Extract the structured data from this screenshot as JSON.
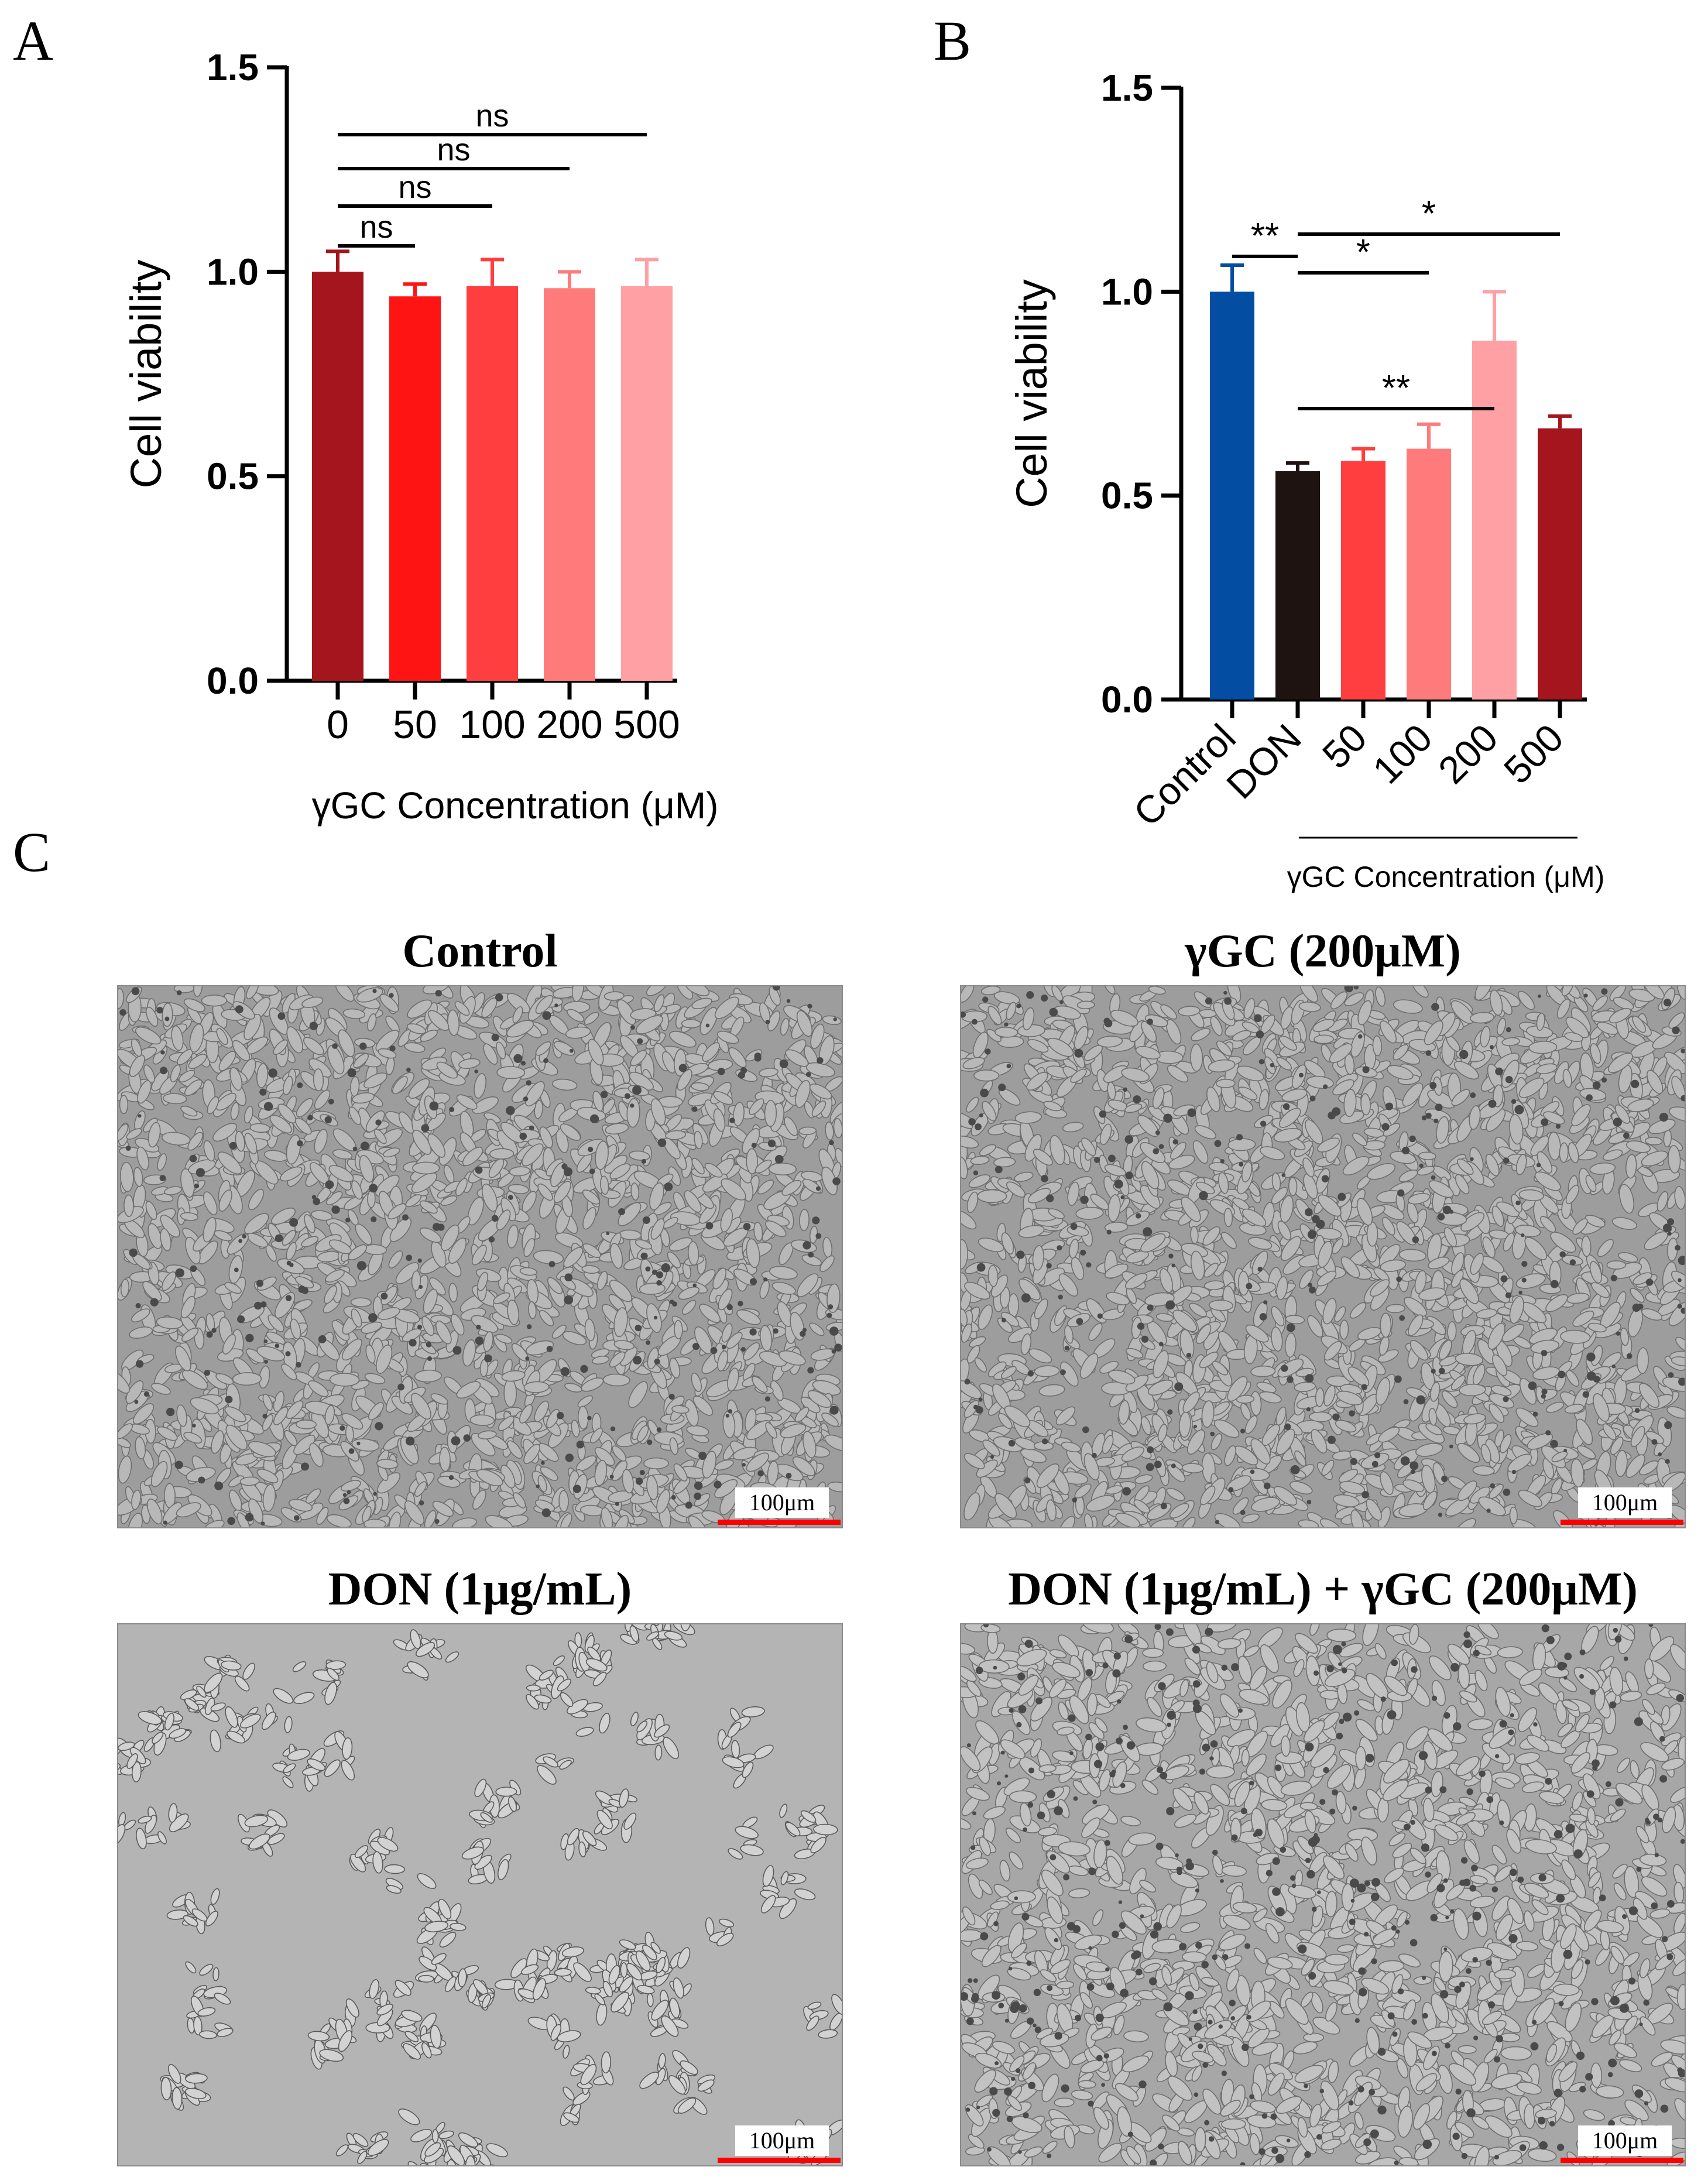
{
  "panels": {
    "a": "A",
    "b": "B",
    "c": "C"
  },
  "chart_data": [
    {
      "type": "bar",
      "title": "",
      "ylabel": "Cell viability",
      "xlabel": "γGC Concentration (μM)",
      "ylim": [
        0,
        1.5
      ],
      "yticks": [
        0.0,
        0.5,
        1.0,
        1.5
      ],
      "ytick_labels": [
        "0.0",
        "0.5",
        "1.0",
        "1.5"
      ],
      "categories": [
        "0",
        "50",
        "100",
        "200",
        "500"
      ],
      "values": [
        1.0,
        0.94,
        0.965,
        0.96,
        0.965
      ],
      "errors": [
        0.05,
        0.03,
        0.065,
        0.04,
        0.065
      ],
      "colors": [
        "#a5151d",
        "#ff1414",
        "#ff3f3f",
        "#ff7b7b",
        "#ffa0a4"
      ],
      "significance": [
        {
          "from": 0,
          "to": 1,
          "label": "ns"
        },
        {
          "from": 0,
          "to": 2,
          "label": "ns"
        },
        {
          "from": 0,
          "to": 3,
          "label": "ns"
        },
        {
          "from": 0,
          "to": 4,
          "label": "ns"
        }
      ]
    },
    {
      "type": "bar",
      "title": "",
      "ylabel": "Cell viability",
      "xlabel": "γGC Concentration (μM)",
      "ylim": [
        0,
        1.5
      ],
      "yticks": [
        0.0,
        0.5,
        1.0,
        1.5
      ],
      "ytick_labels": [
        "0.0",
        "0.5",
        "1.0",
        "1.5"
      ],
      "categories": [
        "Control",
        "DON",
        "50",
        "100",
        "200",
        "500"
      ],
      "values": [
        1.0,
        0.56,
        0.585,
        0.615,
        0.88,
        0.665
      ],
      "errors": [
        0.065,
        0.02,
        0.03,
        0.06,
        0.12,
        0.03
      ],
      "colors": [
        "#034ea2",
        "#1e1311",
        "#ff3f3f",
        "#ff7b7b",
        "#ffa0a4",
        "#a5151d"
      ],
      "significance": [
        {
          "from": 0,
          "to": 1,
          "label": "**"
        },
        {
          "from": 1,
          "to": 4,
          "label": "**"
        },
        {
          "from": 1,
          "to": 5,
          "label": "*"
        },
        {
          "from": 1,
          "to": 3,
          "label": "*"
        }
      ],
      "group_label_span": [
        2,
        5
      ]
    }
  ],
  "micrographs": [
    {
      "title": "Control",
      "scale_label": "100μm",
      "density": "confluent"
    },
    {
      "title": "γGC (200μM)",
      "scale_label": "100μm",
      "density": "confluent"
    },
    {
      "title": "DON (1μg/mL)",
      "scale_label": "100μm",
      "density": "sparse"
    },
    {
      "title": "DON (1μg/mL) + γGC (200μM)",
      "scale_label": "100μm",
      "density": "dense"
    }
  ],
  "colors": {
    "scale_bar": "#ff0000",
    "micrograph_background": "#a9a9a9"
  }
}
